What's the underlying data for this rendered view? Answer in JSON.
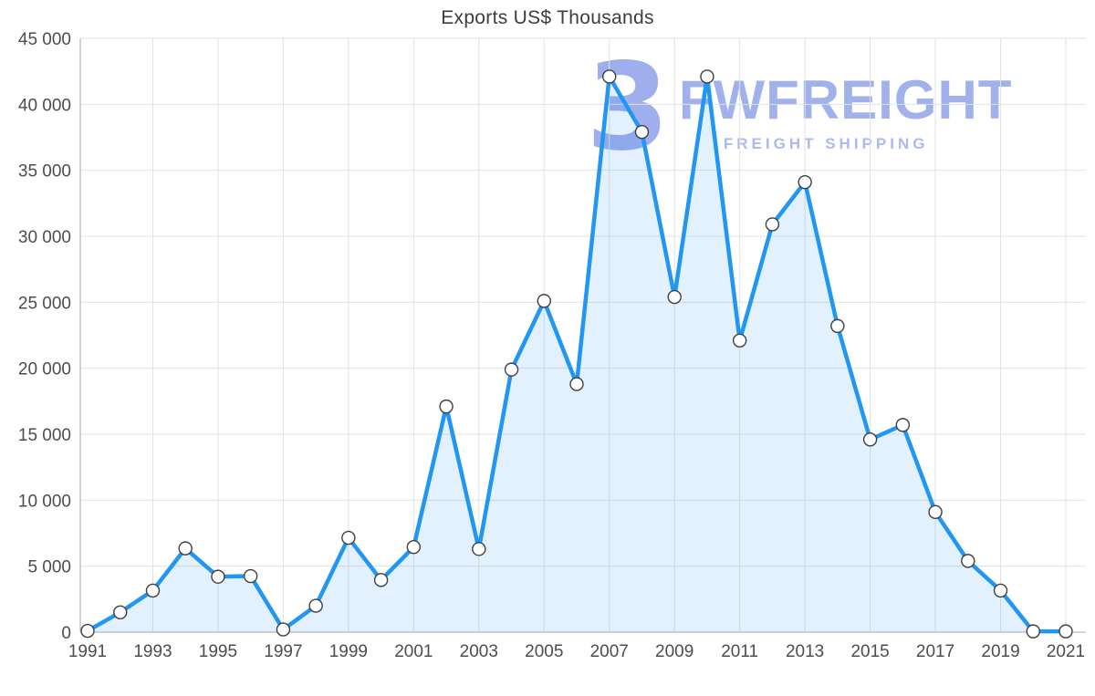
{
  "title": "Exports US$ Thousands",
  "watermark": {
    "logo_text": "3",
    "brand": "FWFREIGHT",
    "tagline": "FREIGHT SHIPPING",
    "color": "#8ca0e8"
  },
  "chart_data": {
    "type": "area",
    "title": "Exports US$ Thousands",
    "xlabel": "",
    "ylabel": "",
    "x": [
      1991,
      1992,
      1993,
      1994,
      1995,
      1996,
      1997,
      1998,
      1999,
      2000,
      2001,
      2002,
      2003,
      2004,
      2005,
      2006,
      2007,
      2008,
      2009,
      2010,
      2011,
      2012,
      2013,
      2014,
      2015,
      2016,
      2017,
      2018,
      2019,
      2020,
      2021
    ],
    "values": [
      100,
      1500,
      3150,
      6350,
      4200,
      4250,
      200,
      2000,
      7150,
      3950,
      6450,
      17100,
      6300,
      19900,
      25100,
      18800,
      42100,
      37900,
      25400,
      42100,
      22100,
      30900,
      34100,
      23200,
      14600,
      15700,
      9100,
      5400,
      3150,
      60,
      60
    ],
    "ylim": [
      0,
      45000
    ],
    "yticks": [
      0,
      5000,
      10000,
      15000,
      20000,
      25000,
      30000,
      35000,
      40000,
      45000
    ],
    "ytick_labels": [
      "0",
      "5 000",
      "10 000",
      "15 000",
      "20 000",
      "25 000",
      "30 000",
      "35 000",
      "40 000",
      "45 000"
    ],
    "xticks": [
      1991,
      1993,
      1995,
      1997,
      1999,
      2001,
      2003,
      2005,
      2007,
      2009,
      2011,
      2013,
      2015,
      2017,
      2019,
      2021
    ],
    "xtick_labels": [
      "1991",
      "1993",
      "1995",
      "1997",
      "1999",
      "2001",
      "2003",
      "2005",
      "2007",
      "2009",
      "2011",
      "2013",
      "2015",
      "2017",
      "2019",
      "2021"
    ],
    "grid": true,
    "legend": "none",
    "line_color": "#2196f3",
    "area_color": "rgba(33,150,243,0.13)",
    "grid_color": "#e2e2e2",
    "axis_color": "#c6c6c6",
    "tick_color": "#4d4d4d",
    "marker_fill": "#ffffff",
    "marker_stroke": "#3f3f3f"
  }
}
